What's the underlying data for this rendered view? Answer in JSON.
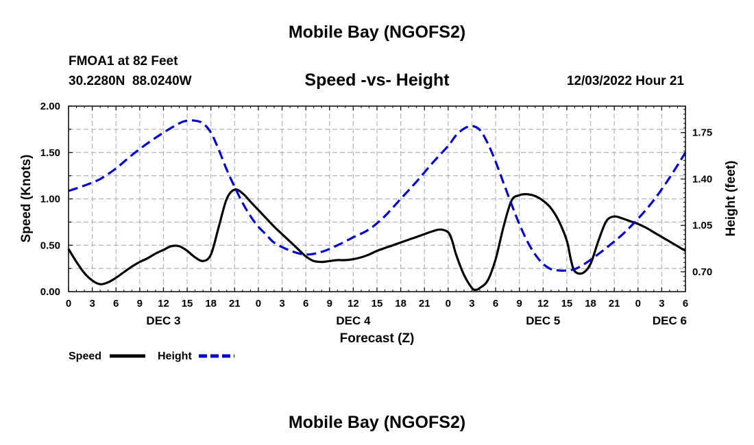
{
  "chart_data": {
    "type": "line",
    "title": "Mobile Bay (NGOFS2)",
    "footer_title": "Mobile Bay (NGOFS2)",
    "subtitle": "Speed -vs- Height",
    "station": "FMOA1 at 82 Feet",
    "coords": "30.2280N  88.0240W",
    "timestamp": "12/03/2022 Hour 21",
    "xlabel": "Forecast (Z)",
    "ylabel_left": "Speed (Knots)",
    "ylabel_right": "Height (feet)",
    "x_range": [
      0,
      78
    ],
    "ylim_left": [
      0,
      2.0
    ],
    "ylim_right": [
      0.55,
      1.95
    ],
    "grid": true,
    "x_ticks": [
      {
        "x": 0,
        "label": "0"
      },
      {
        "x": 3,
        "label": "3"
      },
      {
        "x": 6,
        "label": "6"
      },
      {
        "x": 9,
        "label": "9"
      },
      {
        "x": 12,
        "label": "12"
      },
      {
        "x": 15,
        "label": "15"
      },
      {
        "x": 18,
        "label": "18"
      },
      {
        "x": 21,
        "label": "21"
      },
      {
        "x": 24,
        "label": "0"
      },
      {
        "x": 27,
        "label": "3"
      },
      {
        "x": 30,
        "label": "6"
      },
      {
        "x": 33,
        "label": "9"
      },
      {
        "x": 36,
        "label": "12"
      },
      {
        "x": 39,
        "label": "15"
      },
      {
        "x": 42,
        "label": "18"
      },
      {
        "x": 45,
        "label": "21"
      },
      {
        "x": 48,
        "label": "0"
      },
      {
        "x": 51,
        "label": "3"
      },
      {
        "x": 54,
        "label": "6"
      },
      {
        "x": 57,
        "label": "9"
      },
      {
        "x": 60,
        "label": "12"
      },
      {
        "x": 63,
        "label": "15"
      },
      {
        "x": 66,
        "label": "18"
      },
      {
        "x": 69,
        "label": "21"
      },
      {
        "x": 72,
        "label": "0"
      },
      {
        "x": 75,
        "label": "3"
      },
      {
        "x": 78,
        "label": "6"
      }
    ],
    "day_labels": [
      {
        "x": 12,
        "label": "DEC 3"
      },
      {
        "x": 36,
        "label": "DEC 4"
      },
      {
        "x": 60,
        "label": "DEC 5"
      },
      {
        "x": 76,
        "label": "DEC 6"
      }
    ],
    "y_left_ticks": [
      "0.00",
      "0.50",
      "1.00",
      "1.50",
      "2.00"
    ],
    "y_right_ticks": [
      "0.70",
      "1.05",
      "1.40",
      "1.75"
    ],
    "legend": [
      {
        "name": "Speed",
        "color": "#000000",
        "dash": "solid"
      },
      {
        "name": "Height",
        "color": "#0000cc",
        "dash": "dashed"
      }
    ],
    "series": [
      {
        "name": "Speed",
        "axis": "left",
        "color": "#000000",
        "x": [
          0,
          1,
          2,
          3,
          4,
          5,
          6,
          7,
          8,
          9,
          10,
          11,
          12,
          13,
          14,
          15,
          16,
          17,
          18,
          19,
          20,
          21,
          22,
          23,
          24,
          25,
          26,
          27,
          28,
          29,
          30,
          31,
          32,
          33,
          34,
          35,
          36,
          37,
          38,
          39,
          40,
          41,
          42,
          43,
          44,
          45,
          46,
          47,
          48,
          48.5,
          49,
          50,
          51,
          51.5,
          52,
          53,
          54,
          55,
          56,
          57,
          58,
          59,
          60,
          61,
          62,
          63,
          63.5,
          64,
          65,
          66,
          67,
          68,
          69,
          70,
          71,
          72,
          73,
          74,
          75,
          76,
          77,
          78
        ],
        "values": [
          0.46,
          0.32,
          0.2,
          0.12,
          0.08,
          0.1,
          0.15,
          0.21,
          0.27,
          0.32,
          0.36,
          0.41,
          0.45,
          0.49,
          0.49,
          0.44,
          0.37,
          0.33,
          0.4,
          0.7,
          1.0,
          1.1,
          1.06,
          0.97,
          0.88,
          0.79,
          0.7,
          0.62,
          0.54,
          0.46,
          0.38,
          0.33,
          0.32,
          0.33,
          0.34,
          0.34,
          0.35,
          0.37,
          0.4,
          0.44,
          0.47,
          0.5,
          0.53,
          0.56,
          0.59,
          0.62,
          0.65,
          0.67,
          0.64,
          0.55,
          0.4,
          0.18,
          0.04,
          0.02,
          0.04,
          0.12,
          0.35,
          0.7,
          0.98,
          1.04,
          1.05,
          1.03,
          0.98,
          0.9,
          0.76,
          0.55,
          0.35,
          0.22,
          0.2,
          0.3,
          0.55,
          0.76,
          0.81,
          0.79,
          0.76,
          0.73,
          0.69,
          0.64,
          0.59,
          0.54,
          0.49,
          0.44
        ]
      },
      {
        "name": "Height",
        "axis": "right",
        "color": "#0000cc",
        "x": [
          0,
          2,
          4,
          6,
          8,
          10,
          12,
          14,
          15,
          16,
          17,
          18,
          19,
          20,
          21,
          22,
          23,
          24,
          25,
          26,
          28,
          30,
          32,
          34,
          36,
          38,
          40,
          42,
          44,
          46,
          48,
          49,
          50,
          51,
          52,
          53,
          54,
          55,
          56,
          57,
          58,
          59,
          60,
          61,
          62,
          63,
          64,
          65,
          66,
          68,
          70,
          72,
          74,
          76,
          78
        ],
        "values": [
          1.31,
          1.35,
          1.4,
          1.48,
          1.58,
          1.67,
          1.75,
          1.82,
          1.84,
          1.84,
          1.82,
          1.75,
          1.62,
          1.47,
          1.34,
          1.22,
          1.12,
          1.04,
          0.98,
          0.92,
          0.86,
          0.83,
          0.85,
          0.9,
          0.96,
          1.02,
          1.12,
          1.25,
          1.38,
          1.52,
          1.65,
          1.73,
          1.78,
          1.8,
          1.77,
          1.67,
          1.53,
          1.37,
          1.21,
          1.06,
          0.93,
          0.83,
          0.76,
          0.72,
          0.71,
          0.71,
          0.72,
          0.75,
          0.79,
          0.88,
          0.98,
          1.1,
          1.24,
          1.41,
          1.6
        ]
      }
    ]
  }
}
